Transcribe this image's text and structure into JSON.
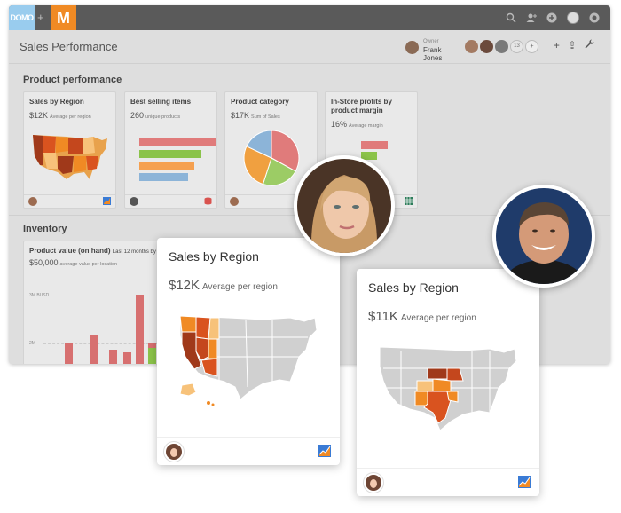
{
  "topbar": {
    "logo_text": "DOMO",
    "separator": "+",
    "app_logo": "M",
    "icons": [
      "search-icon",
      "add-user-icon",
      "add-circle-icon",
      "user-avatar-icon",
      "help-icon"
    ]
  },
  "header": {
    "title": "Sales Performance",
    "owner_label": "Owner",
    "owner_name": "Frank Jones",
    "shared_count": "13",
    "tools": [
      "+",
      "⇪",
      "🔧"
    ]
  },
  "sections": {
    "product_performance": "Product performance",
    "inventory": "Inventory"
  },
  "cards": [
    {
      "title": "Sales by Region",
      "value": "$12K",
      "sub": "Average per region"
    },
    {
      "title": "Best selling items",
      "value": "260",
      "sub": "unique products"
    },
    {
      "title": "Product category",
      "value": "$17K",
      "sub": "Sum of Sales"
    },
    {
      "title": "In-Store profits by product margin",
      "value": "16%",
      "sub": "Average margin"
    }
  ],
  "best_selling_bars": [
    {
      "value": 1.0,
      "color": "#e07b7b"
    },
    {
      "value": 0.81,
      "color": "#8bc34a"
    },
    {
      "value": 0.72,
      "color": "#f5a050"
    },
    {
      "value": 0.64,
      "color": "#8cb4d8"
    }
  ],
  "pie": [
    {
      "value": 0.33,
      "color": "#e07b7b"
    },
    {
      "value": 0.22,
      "color": "#9ccc65"
    },
    {
      "value": 0.27,
      "color": "#f0a040"
    },
    {
      "value": 0.18,
      "color": "#8cb4d8"
    }
  ],
  "inventory_card": {
    "title": "Product value (on hand)",
    "title_note": "Last 12 months by",
    "value": "$50,000",
    "sub": "average value per location",
    "y_ticks": [
      "3M",
      "2M"
    ],
    "y_tick_extra": "BUSD"
  },
  "inventory_bars": [
    {
      "v": 0.25,
      "c": "#d77070"
    },
    {
      "v": 0.35,
      "c": "#d77070"
    },
    {
      "v": 0.18,
      "c": "#d77070"
    },
    {
      "v": 0.15,
      "c": "#d77070"
    },
    {
      "v": 0.8,
      "c": "#d77070"
    },
    {
      "v": 0.25,
      "c": "#d77070"
    },
    {
      "v": 0.2,
      "c": "#8bc34a"
    },
    {
      "v": 0.75,
      "c": "#d77070"
    }
  ],
  "popup_west": {
    "title": "Sales by Region",
    "value": "$12K",
    "sub": "Average per region"
  },
  "popup_central": {
    "title": "Sales by Region",
    "value": "$11K",
    "sub": "Average per region"
  },
  "colors": {
    "accent": "#f08a24",
    "domo": "#99ccee",
    "dark": "#a0391a",
    "mid": "#d9531f",
    "orange": "#f08a24",
    "light": "#f7c27a",
    "gray": "#d0d0d0"
  }
}
